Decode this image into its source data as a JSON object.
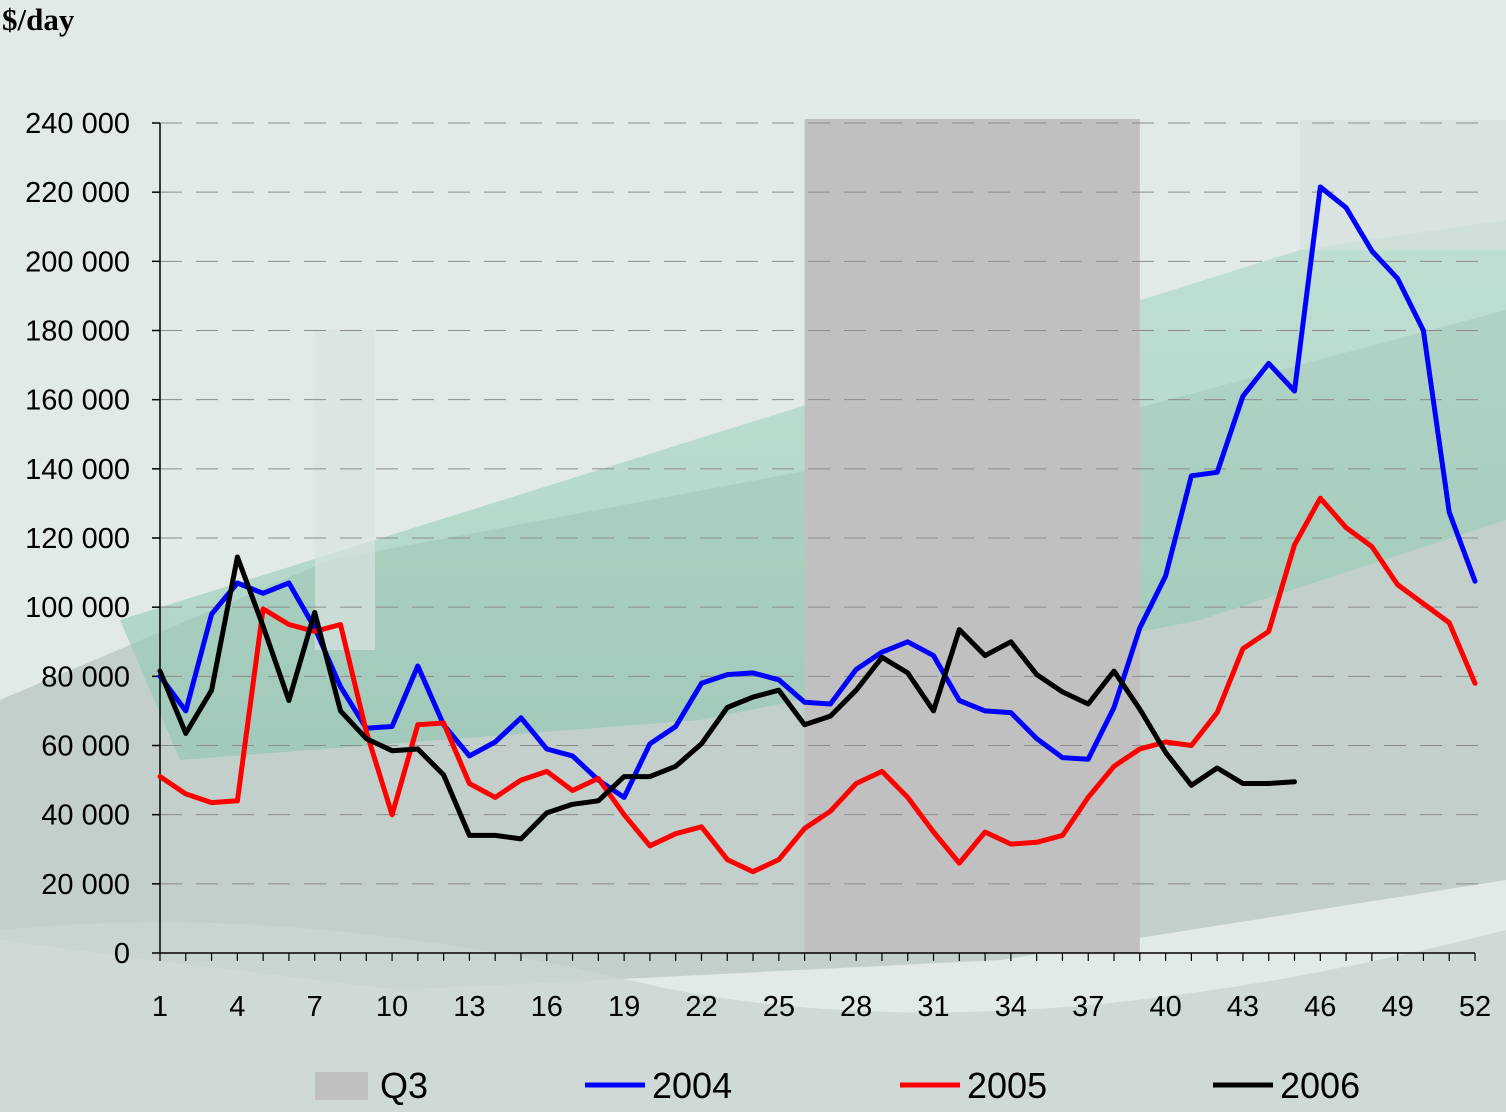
{
  "chart_data": {
    "type": "line",
    "ylabel": "$/day",
    "ylim": [
      0,
      240000
    ],
    "yticks": [
      0,
      20000,
      40000,
      60000,
      80000,
      100000,
      120000,
      140000,
      160000,
      180000,
      200000,
      220000,
      240000
    ],
    "ytick_labels": [
      "0",
      "20 000",
      "40 000",
      "60 000",
      "80 000",
      "100 000",
      "120 000",
      "140 000",
      "160 000",
      "180 000",
      "200 000",
      "220 000",
      "240 000"
    ],
    "xlim": [
      1,
      52
    ],
    "xticks": [
      1,
      4,
      7,
      10,
      13,
      16,
      19,
      22,
      25,
      28,
      31,
      34,
      37,
      40,
      43,
      46,
      49,
      52
    ],
    "grid": "horizontal dashed",
    "shaded_region": {
      "name": "Q3",
      "x_start": 26,
      "x_end": 39,
      "color": "#c0c0c0"
    },
    "legend_position": "bottom",
    "series": [
      {
        "name": "2004",
        "color": "#0000ff",
        "x": [
          1,
          2,
          3,
          4,
          5,
          6,
          7,
          8,
          9,
          10,
          11,
          12,
          13,
          14,
          15,
          16,
          17,
          18,
          19,
          20,
          21,
          22,
          23,
          24,
          25,
          26,
          27,
          28,
          29,
          30,
          31,
          32,
          33,
          34,
          35,
          36,
          37,
          38,
          39,
          40,
          41,
          42,
          43,
          44,
          45,
          46,
          47,
          48,
          49,
          50,
          51,
          52
        ],
        "values": [
          80000,
          70000,
          98000,
          107000,
          104000,
          107000,
          94000,
          77000,
          65000,
          65500,
          83000,
          66000,
          57000,
          61000,
          68000,
          59000,
          57000,
          50000,
          45000,
          60500,
          65500,
          78000,
          80500,
          81000,
          79000,
          72500,
          72000,
          82000,
          87000,
          90000,
          86000,
          73000,
          70000,
          69500,
          62000,
          56500,
          56000,
          71000,
          94000,
          109000,
          138000,
          139000,
          161000,
          170500,
          162500,
          221500,
          215500,
          203000,
          195000,
          180000,
          127500,
          107500
        ]
      },
      {
        "name": "2005",
        "color": "#ff0000",
        "x": [
          1,
          2,
          3,
          4,
          5,
          6,
          7,
          8,
          9,
          10,
          11,
          12,
          13,
          14,
          15,
          16,
          17,
          18,
          19,
          20,
          21,
          22,
          23,
          24,
          25,
          26,
          27,
          28,
          29,
          30,
          31,
          32,
          33,
          34,
          35,
          36,
          37,
          38,
          39,
          40,
          41,
          42,
          43,
          44,
          45,
          46,
          47,
          48,
          49,
          50,
          51,
          52
        ],
        "values": [
          51000,
          46000,
          43500,
          44000,
          99500,
          95000,
          93000,
          95000,
          64000,
          40000,
          66000,
          66500,
          49000,
          45000,
          50000,
          52500,
          47000,
          50500,
          40000,
          31000,
          34500,
          36500,
          27000,
          23500,
          27000,
          36000,
          41000,
          49000,
          52500,
          45000,
          35000,
          26000,
          35000,
          31500,
          32000,
          34000,
          45000,
          54000,
          59000,
          61000,
          60000,
          69500,
          88000,
          93000,
          118000,
          131500,
          123000,
          117500,
          106500,
          101000,
          95500,
          78000
        ]
      },
      {
        "name": "2006",
        "color": "#000000",
        "x": [
          1,
          2,
          3,
          4,
          5,
          6,
          7,
          8,
          9,
          10,
          11,
          12,
          13,
          14,
          15,
          16,
          17,
          18,
          19,
          20,
          21,
          22,
          23,
          24,
          25,
          26,
          27,
          28,
          29,
          30,
          31,
          32,
          33,
          34,
          35,
          36,
          37,
          38,
          39,
          40,
          41,
          42,
          43,
          44,
          45
        ],
        "values": [
          81500,
          63500,
          76000,
          114500,
          94500,
          73000,
          98500,
          70000,
          62000,
          58500,
          59000,
          51500,
          34000,
          34000,
          33000,
          40500,
          43000,
          44000,
          51000,
          51000,
          54000,
          60500,
          71000,
          74000,
          76000,
          66000,
          68500,
          76000,
          85500,
          81000,
          70000,
          93500,
          86000,
          90000,
          80500,
          75500,
          72000,
          81500,
          70500,
          58000,
          48500,
          53500,
          49000,
          49000,
          49500
        ]
      }
    ]
  },
  "colors": {
    "shade": "#c0c0c0",
    "axis": "#000000",
    "grid": "#8c8c8c"
  }
}
